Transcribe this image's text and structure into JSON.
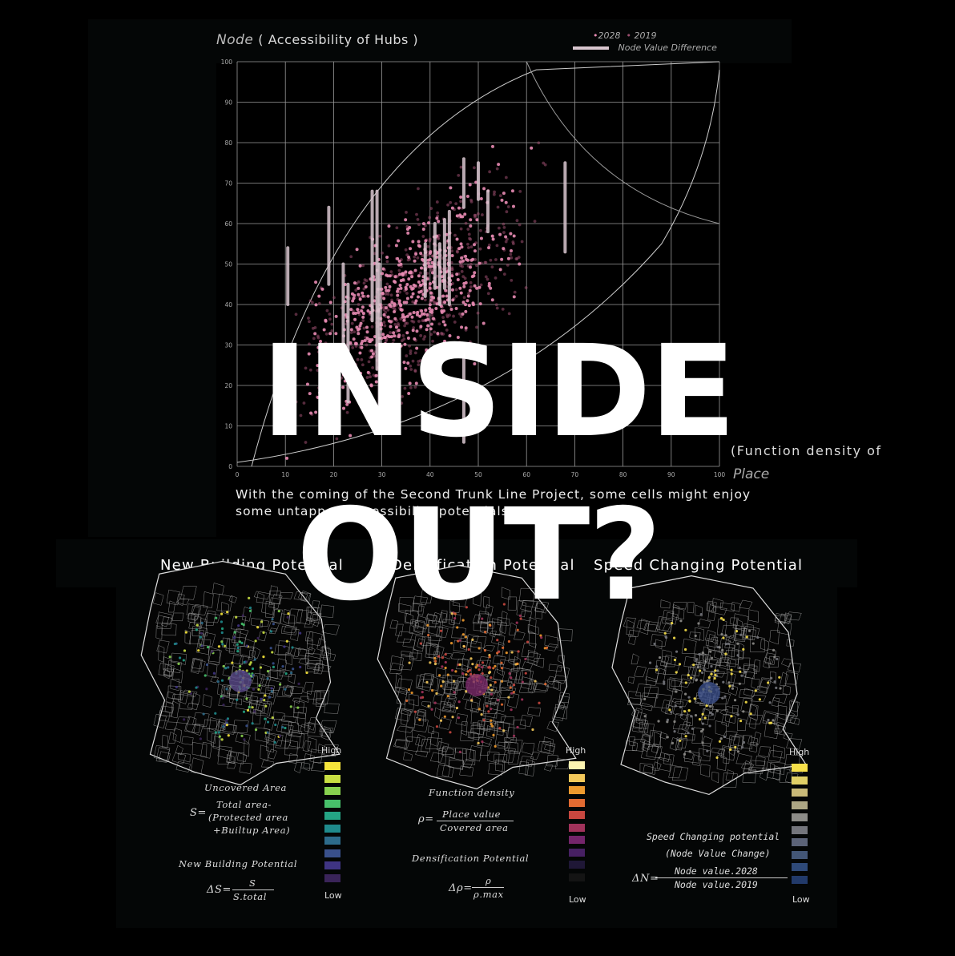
{
  "chart_data": {
    "type": "scatter",
    "title": "Node",
    "title_suffix": "( Accessibility of Hubs )",
    "xlabel_prefix": "(Function density of",
    "xlabel": "Place",
    "xlim": [
      0,
      100
    ],
    "ylim": [
      0,
      100
    ],
    "x_ticks": [
      0,
      10,
      20,
      30,
      40,
      50,
      60,
      70,
      80,
      90,
      100
    ],
    "y_ticks": [
      0,
      10,
      20,
      30,
      40,
      50,
      60,
      70,
      80,
      90,
      100
    ],
    "grid": true,
    "legend_position": "top-right",
    "legend": {
      "s2028": "2028",
      "s2019": "2019",
      "diff": "Node Value Difference"
    },
    "colors": {
      "s2028": "#e88bb3",
      "s2019": "#9c4f6f",
      "diff": "#d9c6cf",
      "grid": "#9a9a9a"
    },
    "difference_bars": [
      {
        "x": 10.5,
        "y1": 40,
        "y2": 54
      },
      {
        "x": 19,
        "y1": 45,
        "y2": 64
      },
      {
        "x": 22,
        "y1": 30,
        "y2": 50
      },
      {
        "x": 23,
        "y1": 16,
        "y2": 45
      },
      {
        "x": 28,
        "y1": 36,
        "y2": 68
      },
      {
        "x": 29,
        "y1": 24,
        "y2": 68
      },
      {
        "x": 29.5,
        "y1": 10,
        "y2": 50
      },
      {
        "x": 39,
        "y1": 42,
        "y2": 55
      },
      {
        "x": 41,
        "y1": 44,
        "y2": 60
      },
      {
        "x": 42,
        "y1": 40,
        "y2": 55
      },
      {
        "x": 43,
        "y1": 44,
        "y2": 61
      },
      {
        "x": 44,
        "y1": 40,
        "y2": 63
      },
      {
        "x": 47,
        "y1": 64,
        "y2": 76
      },
      {
        "x": 47,
        "y1": 6,
        "y2": 30
      },
      {
        "x": 50,
        "y1": 66,
        "y2": 75
      },
      {
        "x": 52,
        "y1": 58,
        "y2": 68
      },
      {
        "x": 68,
        "y1": 53,
        "y2": 75
      }
    ]
  },
  "caption": "With the coming of the Second Trunk Line Project, some cells might enjoy some untapped accessibility potentials.",
  "overlay_title": {
    "line1": "INSIDE",
    "line2": "OUT?"
  },
  "maps": [
    {
      "title": "New Building Potential",
      "high": "High",
      "low": "Low",
      "formula1_label": "Uncovered Area",
      "formula1_lhs": "S=",
      "formula1_rhs": [
        "Total area-",
        "(Protected area",
        "+Builtup Area)"
      ],
      "formula2_label": "New Building Potential",
      "formula2_lhs": "ΔS=",
      "formula2_num": "S",
      "formula2_den": "S.total",
      "swatches": [
        "#f5e43b",
        "#c8de42",
        "#88d24f",
        "#47c06a",
        "#24a484",
        "#1f8a8c",
        "#2d6b8b",
        "#39508b",
        "#3f3483",
        "#3a2459"
      ]
    },
    {
      "title": "Densification Potential",
      "high": "High",
      "low": "Low",
      "formula1_label": "Function density",
      "formula1_lhs": "ρ=",
      "formula1_num": "Place value",
      "formula1_den": "Covered area",
      "formula2_label": "Densification Potential",
      "formula2_lhs": "Δρ=",
      "formula2_num": "ρ",
      "formula2_den": "ρ.max",
      "swatches": [
        "#fbf3b0",
        "#f3c85a",
        "#ee9a2e",
        "#e26a31",
        "#c8473f",
        "#a1325b",
        "#74256b",
        "#472063",
        "#1f1736",
        "#141414"
      ]
    },
    {
      "title": "Speed Changing Potential",
      "high": "High",
      "low": "Low",
      "formula1_label": "Speed Changing potential",
      "formula1_sub": "(Node Value Change)",
      "formula1_lhs": "ΔN=",
      "formula1_num": "Node value.2028",
      "formula1_den": "Node value.2019",
      "swatches": [
        "#f7e04a",
        "#e0cf66",
        "#c9b978",
        "#ada684",
        "#8d8c88",
        "#74757c",
        "#5c6378",
        "#435676",
        "#2e4978",
        "#223a6a"
      ]
    }
  ]
}
